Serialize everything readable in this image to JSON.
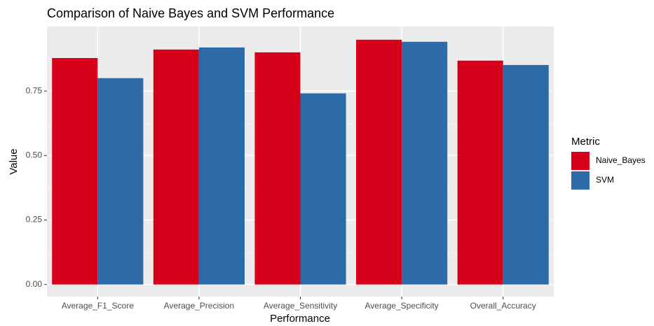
{
  "chart_data": {
    "type": "bar",
    "title": "Comparison of Naive Bayes and SVM Performance",
    "x_label": "Performance",
    "y_label": "Value",
    "legend_title": "Metric",
    "categories": [
      "Average_F1_Score",
      "Average_Precision",
      "Average_Sensitivity",
      "Average_Specificity",
      "Overall_Accuracy"
    ],
    "series": [
      {
        "name": "Naive_Bayes",
        "color": "#d7001a",
        "values": [
          0.878,
          0.911,
          0.9,
          0.949,
          0.868
        ]
      },
      {
        "name": "SVM",
        "color": "#2d6aa8",
        "values": [
          0.8,
          0.919,
          0.741,
          0.941,
          0.851
        ]
      }
    ],
    "ylim": [
      -0.047,
      1.0
    ],
    "yticks": [
      {
        "value": 0,
        "label": "0.00"
      },
      0.25,
      {
        "value": 0.5,
        "label": "0.50"
      },
      0.75
    ],
    "grid": true,
    "legend_position": "right"
  }
}
